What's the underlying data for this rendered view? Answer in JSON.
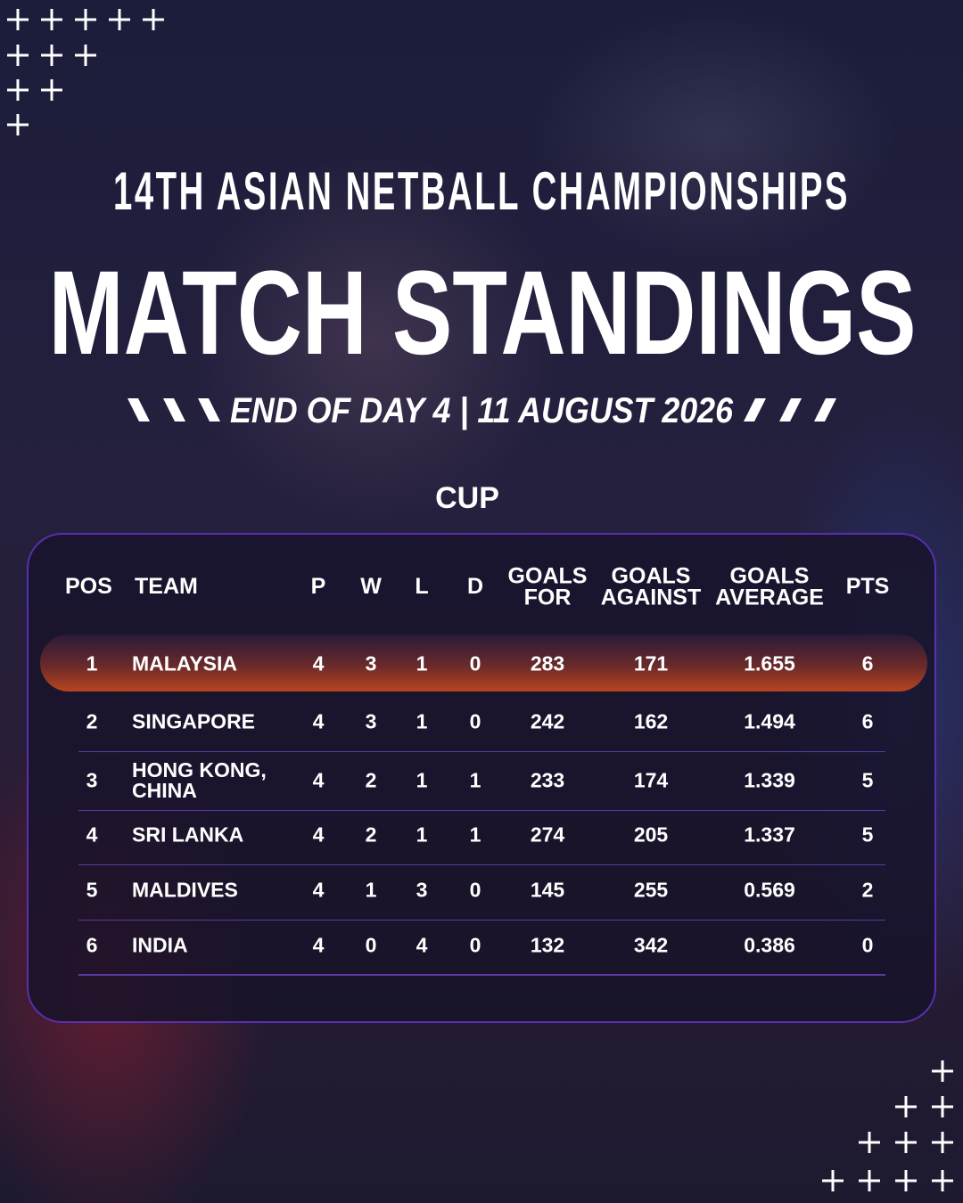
{
  "header": {
    "subtitle": "14TH ASIAN NETBALL CHAMPIONSHIPS",
    "title": "MATCH STANDINGS",
    "date": "END OF DAY 4 | 11 AUGUST 2026"
  },
  "table": {
    "caption": "CUP",
    "columns": [
      "POS",
      "TEAM",
      "P",
      "W",
      "L",
      "D",
      "GOALS FOR",
      "GOALS AGAINST",
      "GOALS AVERAGE",
      "PTS"
    ],
    "rows": [
      [
        "1",
        "MALAYSIA",
        "4",
        "3",
        "1",
        "0",
        "283",
        "171",
        "1.655",
        "6"
      ],
      [
        "2",
        "SINGAPORE",
        "4",
        "3",
        "1",
        "0",
        "242",
        "162",
        "1.494",
        "6"
      ],
      [
        "3",
        "HONG KONG, CHINA",
        "4",
        "2",
        "1",
        "1",
        "233",
        "174",
        "1.339",
        "5"
      ],
      [
        "4",
        "SRI LANKA",
        "4",
        "2",
        "1",
        "1",
        "274",
        "205",
        "1.337",
        "5"
      ],
      [
        "5",
        "MALDIVES",
        "4",
        "1",
        "3",
        "0",
        "145",
        "255",
        "0.569",
        "2"
      ],
      [
        "6",
        "INDIA",
        "4",
        "0",
        "4",
        "0",
        "132",
        "342",
        "0.386",
        "0"
      ]
    ]
  }
}
